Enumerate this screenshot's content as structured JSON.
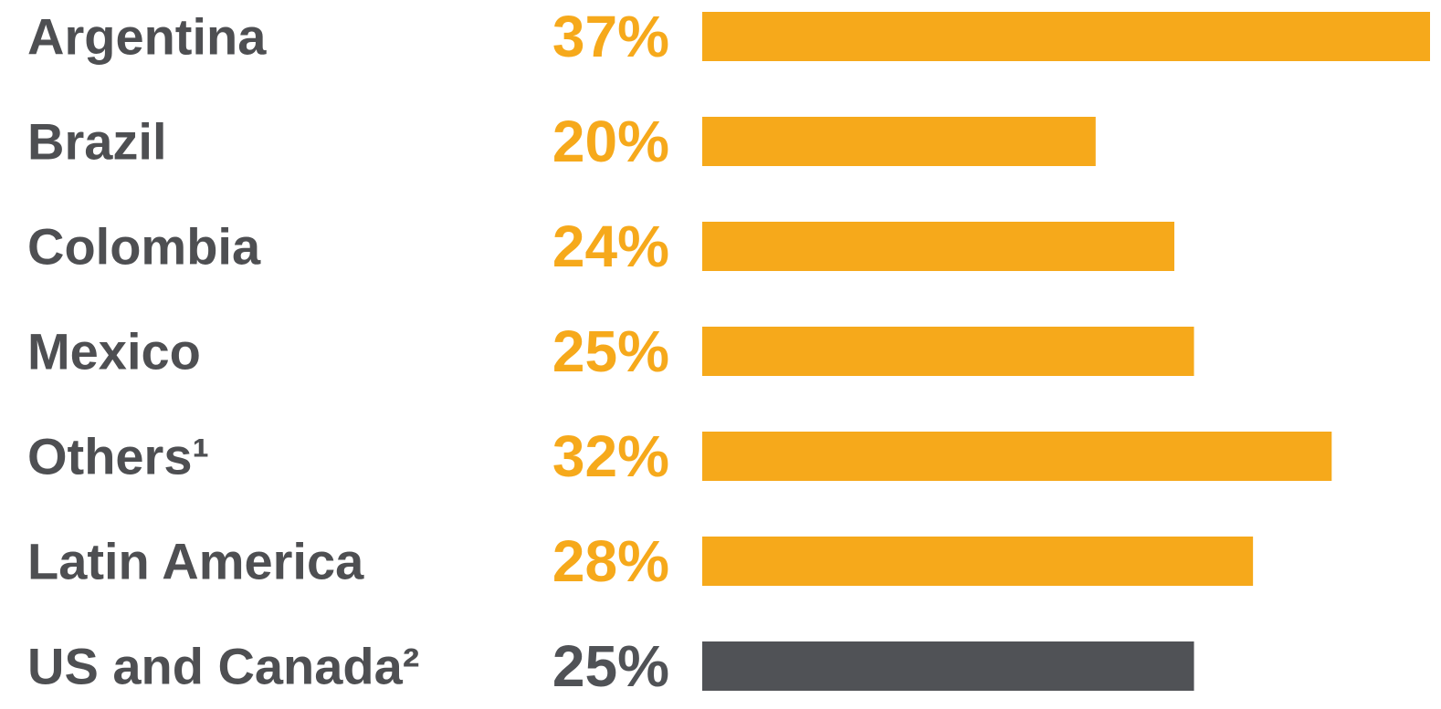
{
  "chart_data": {
    "type": "hbar",
    "categories": [
      "Argentina",
      "Brazil",
      "Colombia",
      "Mexico",
      "Others¹",
      "Latin America",
      "US and Canada²"
    ],
    "values": [
      37,
      20,
      24,
      25,
      32,
      28,
      25
    ],
    "value_labels": [
      "37%",
      "20%",
      "24%",
      "25%",
      "32%",
      "28%",
      "25%"
    ],
    "colors": [
      "#f6a91b",
      "#f6a91b",
      "#f6a91b",
      "#f6a91b",
      "#f6a91b",
      "#f6a91b",
      "#505256"
    ]
  }
}
